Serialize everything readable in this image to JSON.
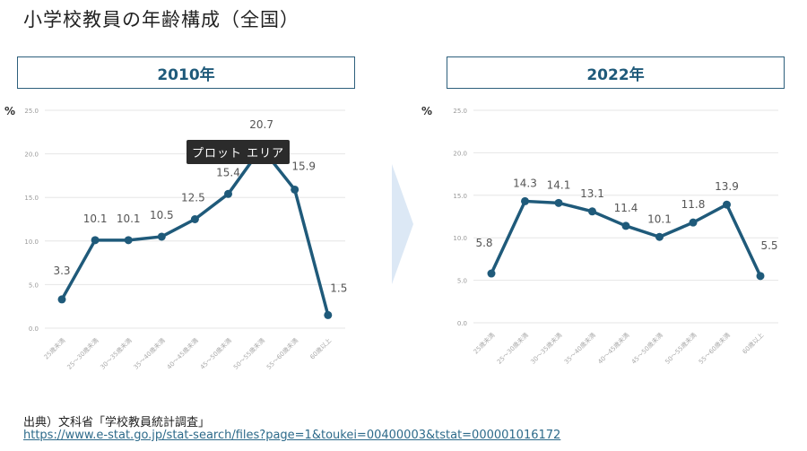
{
  "page_title": "小学校教員の年齢構成（全国）",
  "tooltip": "プロット エリア",
  "source_label": "出典）文科省「学校教員統計調査」",
  "source_url": "https://www.e-stat.go.jp/stat-search/files?page=1&toukei=00400003&tstat=000001016172",
  "colors": {
    "line": "#1f5a7a",
    "grid": "#e6e6e6",
    "arrow": "#dce8f5"
  },
  "chart_data": [
    {
      "type": "line",
      "title": "2010年",
      "ylabel": "%",
      "ylim": [
        0,
        25
      ],
      "yticks": [
        "0.0",
        "5.0",
        "10.0",
        "15.0",
        "20.0",
        "25.0"
      ],
      "categories": [
        "25歳未満",
        "25～30歳未満",
        "30～35歳未満",
        "35～40歳未満",
        "40～45歳未満",
        "45～50歳未満",
        "50～55歳未満",
        "55～60歳未満",
        "60歳以上"
      ],
      "values": [
        3.3,
        10.1,
        10.1,
        10.5,
        12.5,
        15.4,
        20.7,
        15.9,
        1.5
      ],
      "labels": [
        "3.3",
        "10.1",
        "10.1",
        "10.5",
        "12.5",
        "15.4",
        "20.7",
        "15.9",
        "1.5"
      ]
    },
    {
      "type": "line",
      "title": "2022年",
      "ylabel": "%",
      "ylim": [
        0,
        25
      ],
      "yticks": [
        "0.0",
        "5.0",
        "10.0",
        "15.0",
        "20.0",
        "25.0"
      ],
      "categories": [
        "25歳未満",
        "25～30歳未満",
        "30～35歳未満",
        "35～40歳未満",
        "40～45歳未満",
        "45～50歳未満",
        "50～55歳未満",
        "55～60歳未満",
        "60歳以上"
      ],
      "values": [
        5.8,
        14.3,
        14.1,
        13.1,
        11.4,
        10.1,
        11.8,
        13.9,
        5.5
      ],
      "labels": [
        "5.8",
        "14.3",
        "14.1",
        "13.1",
        "11.4",
        "10.1",
        "11.8",
        "13.9",
        "5.5"
      ]
    }
  ]
}
